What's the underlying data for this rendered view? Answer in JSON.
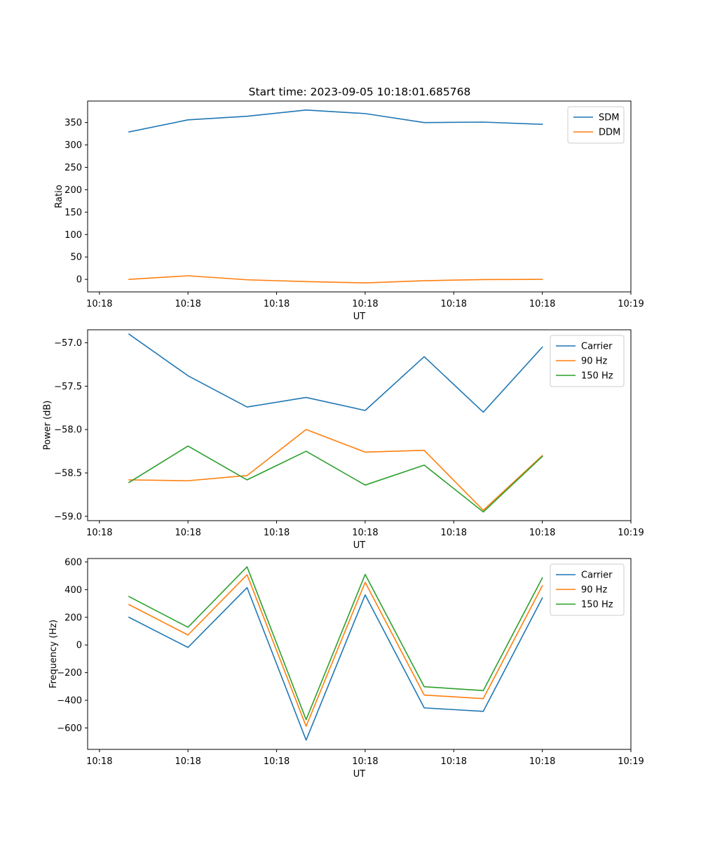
{
  "figure_title": "Start time: 2023-09-05 10:18:01.685768",
  "chart_data": [
    {
      "type": "line",
      "title": "Start time: 2023-09-05 10:18:01.685768",
      "xlabel": "UT",
      "ylabel": "Ratio",
      "x": [
        1,
        2,
        3,
        4,
        5,
        6,
        7,
        8
      ],
      "xlim": [
        0.3,
        9.5
      ],
      "xticks": [
        0.5,
        2.0,
        3.5,
        5.0,
        6.5,
        8.0,
        9.5
      ],
      "xtick_labels": [
        "10:18",
        "10:18",
        "10:18",
        "10:18",
        "10:18",
        "10:18",
        "10:19"
      ],
      "ylim": [
        -28,
        398
      ],
      "yticks": [
        0,
        50,
        100,
        150,
        200,
        250,
        300,
        350
      ],
      "ytick_labels": [
        "0",
        "50",
        "100",
        "150",
        "200",
        "250",
        "300",
        "350"
      ],
      "legend_position": "upper right",
      "series": [
        {
          "name": "SDM",
          "color": "#1f77b4",
          "values": [
            329,
            356,
            364,
            378,
            370,
            350,
            351,
            346
          ]
        },
        {
          "name": "DDM",
          "color": "#ff7f0e",
          "values": [
            0,
            8,
            -1,
            -5,
            -8,
            -3,
            -0.5,
            0
          ]
        }
      ]
    },
    {
      "type": "line",
      "xlabel": "UT",
      "ylabel": "Power (dB)",
      "x": [
        1,
        2,
        3,
        4,
        5,
        6,
        7,
        8
      ],
      "xlim": [
        0.3,
        9.5
      ],
      "xticks": [
        0.5,
        2.0,
        3.5,
        5.0,
        6.5,
        8.0,
        9.5
      ],
      "xtick_labels": [
        "10:18",
        "10:18",
        "10:18",
        "10:18",
        "10:18",
        "10:18",
        "10:19"
      ],
      "ylim": [
        -59.05,
        -56.85
      ],
      "yticks": [
        -57.0,
        -57.5,
        -58.0,
        -58.5,
        -59.0
      ],
      "ytick_labels": [
        "−57.0",
        "−57.5",
        "−58.0",
        "−58.5",
        "−59.0"
      ],
      "legend_position": "upper right",
      "series": [
        {
          "name": "Carrier",
          "color": "#1f77b4",
          "values": [
            -56.9,
            -57.38,
            -57.74,
            -57.63,
            -57.78,
            -57.16,
            -57.8,
            -57.05
          ]
        },
        {
          "name": "90 Hz",
          "color": "#ff7f0e",
          "values": [
            -58.58,
            -58.59,
            -58.53,
            -58.0,
            -58.26,
            -58.24,
            -58.93,
            -58.3
          ]
        },
        {
          "name": "150 Hz",
          "color": "#2ca02c",
          "values": [
            -58.61,
            -58.19,
            -58.58,
            -58.25,
            -58.64,
            -58.41,
            -58.95,
            -58.31
          ]
        }
      ]
    },
    {
      "type": "line",
      "xlabel": "UT",
      "ylabel": "Frequency (Hz)",
      "x": [
        1,
        2,
        3,
        4,
        5,
        6,
        7,
        8
      ],
      "xlim": [
        0.3,
        9.5
      ],
      "xticks": [
        0.5,
        2.0,
        3.5,
        5.0,
        6.5,
        8.0,
        9.5
      ],
      "xtick_labels": [
        "10:18",
        "10:18",
        "10:18",
        "10:18",
        "10:18",
        "10:18",
        "10:19"
      ],
      "ylim": [
        -755,
        625
      ],
      "yticks": [
        600,
        400,
        200,
        0,
        -200,
        -400,
        -600
      ],
      "ytick_labels": [
        "600",
        "400",
        "200",
        "0",
        "−200",
        "−400",
        "−600"
      ],
      "legend_position": "upper right",
      "series": [
        {
          "name": "Carrier",
          "color": "#1f77b4",
          "values": [
            200,
            -18,
            415,
            -688,
            362,
            -455,
            -480,
            340
          ]
        },
        {
          "name": "90 Hz",
          "color": "#ff7f0e",
          "values": [
            292,
            72,
            508,
            -588,
            453,
            -362,
            -388,
            428
          ]
        },
        {
          "name": "150 Hz",
          "color": "#2ca02c",
          "values": [
            350,
            128,
            565,
            -540,
            510,
            -302,
            -330,
            485
          ]
        }
      ]
    }
  ]
}
